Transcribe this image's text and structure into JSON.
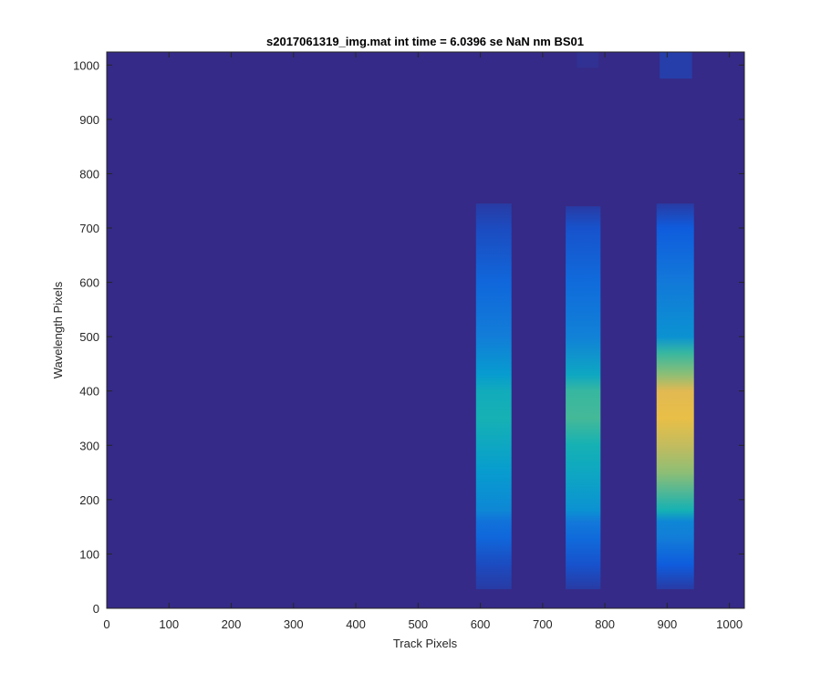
{
  "chart_data": {
    "type": "heatmap",
    "title": "s2017061319_img.mat int time = 6.0396 se  NaN nm BS01",
    "xlabel": "Track Pixels",
    "ylabel": "Wavelength Pixels",
    "xlim": [
      0,
      1024
    ],
    "ylim": [
      0,
      1024
    ],
    "xticks": [
      "0",
      "100",
      "200",
      "300",
      "400",
      "500",
      "600",
      "700",
      "800",
      "900",
      "1000"
    ],
    "yticks": [
      "0",
      "100",
      "200",
      "300",
      "400",
      "500",
      "600",
      "700",
      "800",
      "900",
      "1000"
    ],
    "colormap": "parula",
    "background_color": "#352a87",
    "grid": false,
    "bands": [
      {
        "x_range": [
          593,
          650
        ],
        "y_range": [
          35,
          745
        ],
        "profile": [
          {
            "y": 35,
            "level": 0.05
          },
          {
            "y": 80,
            "level": 0.1
          },
          {
            "y": 130,
            "level": 0.2
          },
          {
            "y": 160,
            "level": 0.25
          },
          {
            "y": 180,
            "level": 0.35
          },
          {
            "y": 250,
            "level": 0.45
          },
          {
            "y": 300,
            "level": 0.5
          },
          {
            "y": 350,
            "level": 0.55
          },
          {
            "y": 400,
            "level": 0.52
          },
          {
            "y": 430,
            "level": 0.45
          },
          {
            "y": 500,
            "level": 0.3
          },
          {
            "y": 600,
            "level": 0.2
          },
          {
            "y": 700,
            "level": 0.1
          },
          {
            "y": 745,
            "level": 0.05
          }
        ]
      },
      {
        "x_range": [
          737,
          793
        ],
        "y_range": [
          35,
          740
        ],
        "profile": [
          {
            "y": 35,
            "level": 0.05
          },
          {
            "y": 80,
            "level": 0.12
          },
          {
            "y": 130,
            "level": 0.22
          },
          {
            "y": 160,
            "level": 0.28
          },
          {
            "y": 180,
            "level": 0.4
          },
          {
            "y": 250,
            "level": 0.5
          },
          {
            "y": 300,
            "level": 0.55
          },
          {
            "y": 350,
            "level": 0.62
          },
          {
            "y": 400,
            "level": 0.6
          },
          {
            "y": 430,
            "level": 0.5
          },
          {
            "y": 500,
            "level": 0.32
          },
          {
            "y": 600,
            "level": 0.22
          },
          {
            "y": 700,
            "level": 0.12
          },
          {
            "y": 740,
            "level": 0.05
          }
        ]
      },
      {
        "x_range": [
          883,
          943
        ],
        "y_range": [
          35,
          745
        ],
        "profile": [
          {
            "y": 35,
            "level": 0.05
          },
          {
            "y": 80,
            "level": 0.15
          },
          {
            "y": 130,
            "level": 0.3
          },
          {
            "y": 160,
            "level": 0.35
          },
          {
            "y": 180,
            "level": 0.55
          },
          {
            "y": 250,
            "level": 0.72
          },
          {
            "y": 300,
            "level": 0.8
          },
          {
            "y": 350,
            "level": 0.88
          },
          {
            "y": 400,
            "level": 0.85
          },
          {
            "y": 430,
            "level": 0.72
          },
          {
            "y": 470,
            "level": 0.6
          },
          {
            "y": 500,
            "level": 0.4
          },
          {
            "y": 600,
            "level": 0.28
          },
          {
            "y": 700,
            "level": 0.15
          },
          {
            "y": 745,
            "level": 0.05
          }
        ]
      },
      {
        "x_range": [
          888,
          940
        ],
        "y_range": [
          975,
          1024
        ],
        "profile": [
          {
            "y": 975,
            "level": 0.06
          },
          {
            "y": 1024,
            "level": 0.06
          }
        ]
      },
      {
        "x_range": [
          755,
          790
        ],
        "y_range": [
          995,
          1024
        ],
        "profile": [
          {
            "y": 995,
            "level": 0.02
          },
          {
            "y": 1024,
            "level": 0.02
          }
        ]
      }
    ]
  }
}
